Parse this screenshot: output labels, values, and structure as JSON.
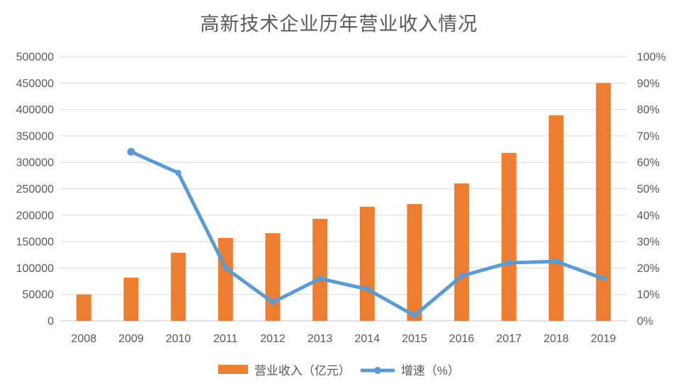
{
  "chart_data": {
    "type": "bar",
    "title": "高新技术企业历年营业收入情况",
    "categories": [
      "2008",
      "2009",
      "2010",
      "2011",
      "2012",
      "2013",
      "2014",
      "2015",
      "2016",
      "2017",
      "2018",
      "2019"
    ],
    "series": [
      {
        "name": "营业收入（亿元）",
        "type": "bar",
        "axis": "left",
        "color": "#ED7D31",
        "values": [
          50000,
          82000,
          129000,
          157000,
          166000,
          193000,
          216000,
          221000,
          260000,
          318000,
          389000,
          450000
        ]
      },
      {
        "name": "增速（%）",
        "type": "line",
        "axis": "right",
        "color": "#5B9BD5",
        "values": [
          null,
          64,
          56,
          20,
          7,
          16,
          12,
          2,
          17,
          22,
          22.5,
          16
        ]
      }
    ],
    "left_axis": {
      "min": 0,
      "max": 500000,
      "step": 50000
    },
    "right_axis": {
      "min": 0,
      "max": 100,
      "step": 10,
      "suffix": "%"
    },
    "grid": true,
    "legend_position": "bottom",
    "colors": {
      "grid": "#D9D9D9",
      "axis_line": "#C6C6C6",
      "text": "#595959",
      "background": "#FFFFFF"
    }
  }
}
